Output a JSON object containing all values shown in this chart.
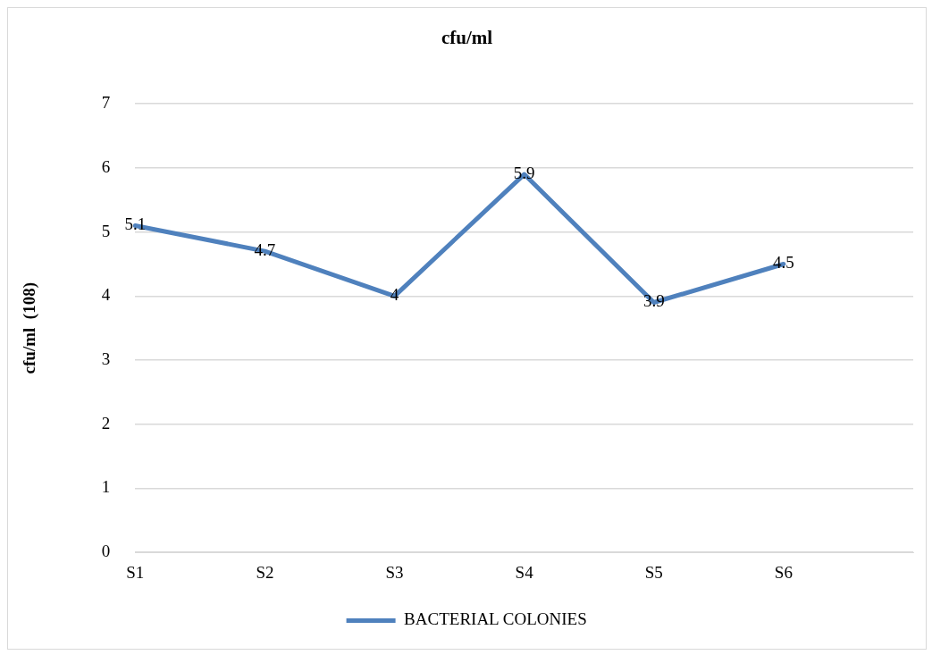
{
  "chart_data": {
    "type": "line",
    "title": "cfu/ml",
    "ylabel": "cfu/ml  (108)",
    "categories": [
      "S1",
      "S2",
      "S3",
      "S4",
      "S5",
      "S6",
      null
    ],
    "series": [
      {
        "name": "BACTERIAL COLONIES",
        "color": "#4f81bd",
        "values": [
          5.1,
          4.7,
          4,
          5.9,
          3.9,
          4.5,
          null
        ]
      }
    ],
    "ylim": [
      0,
      7
    ],
    "yticks": [
      0,
      1,
      2,
      3,
      4,
      5,
      6,
      7
    ],
    "grid": "y",
    "legend": "bottom",
    "marker": "none",
    "line_style": "solid",
    "data_labels": true
  }
}
